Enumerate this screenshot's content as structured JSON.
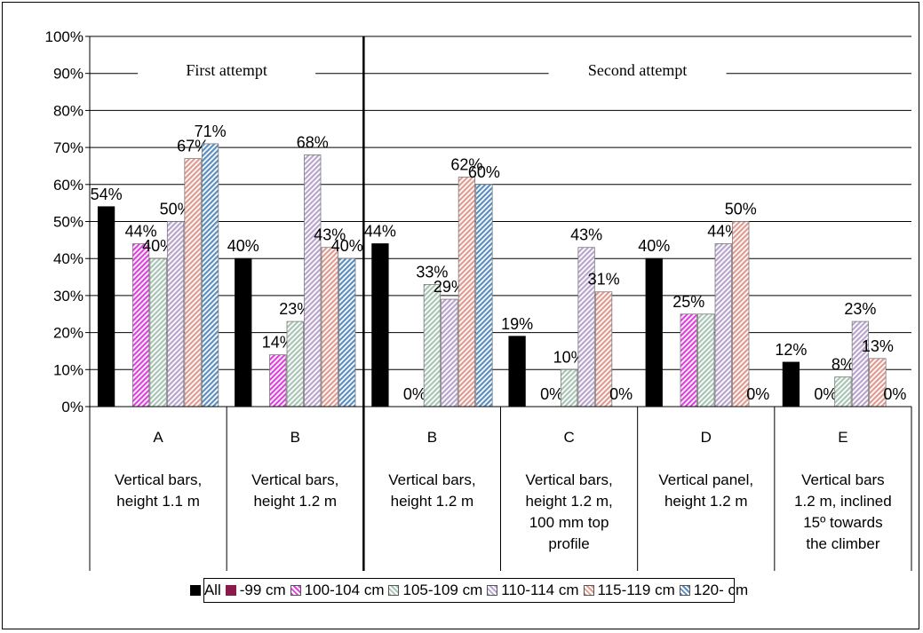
{
  "chart_data": {
    "type": "bar",
    "ylim": [
      0,
      100
    ],
    "yticks": [
      "0%",
      "10%",
      "20%",
      "30%",
      "40%",
      "50%",
      "60%",
      "70%",
      "80%",
      "90%",
      "100%"
    ],
    "grid": true,
    "legend_position": "bottom",
    "attempts": [
      {
        "label": "First attempt",
        "group_start": 0,
        "group_end": 1
      },
      {
        "label": "Second attempt",
        "group_start": 2,
        "group_end": 5
      }
    ],
    "groups": [
      {
        "code": "A",
        "description": [
          "Vertical bars,",
          "height 1.1 m"
        ]
      },
      {
        "code": "B",
        "description": [
          "Vertical bars,",
          "height 1.2 m"
        ]
      },
      {
        "code": "B",
        "description": [
          "Vertical bars,",
          "height 1.2 m"
        ]
      },
      {
        "code": "C",
        "description": [
          "Vertical bars,",
          "height 1.2 m,",
          "100 mm top",
          "profile"
        ]
      },
      {
        "code": "D",
        "description": [
          "Vertical panel,",
          "height 1.2 m"
        ]
      },
      {
        "code": "E",
        "description": [
          "Vertical bars",
          "1.2 m, inclined",
          "15º towards",
          "the climber"
        ]
      }
    ],
    "series": [
      {
        "name": "All",
        "color": "#000000",
        "pattern": "solid",
        "values": [
          54,
          40,
          44,
          19,
          40,
          12
        ],
        "labels": [
          "54%",
          "40%",
          "44%",
          "19%",
          "40%",
          "12%"
        ]
      },
      {
        "name": "-99 cm",
        "color": "#8b1a4a",
        "pattern": "solid",
        "values": [
          null,
          null,
          null,
          null,
          null,
          null
        ],
        "labels": [
          null,
          null,
          null,
          null,
          null,
          null
        ]
      },
      {
        "name": "100-104 cm",
        "color": "#e040e0",
        "pattern": "diag",
        "values": [
          44,
          14,
          0,
          0,
          25,
          0
        ],
        "labels": [
          "44%",
          "14%",
          "0%",
          "0%",
          "25%",
          "0%"
        ]
      },
      {
        "name": "105-109 cm",
        "color": "#a8c4b4",
        "pattern": "diag",
        "values": [
          40,
          23,
          33,
          10,
          25,
          8
        ],
        "labels": [
          "40%",
          "23%",
          "33%",
          "10%",
          null,
          "8%"
        ]
      },
      {
        "name": "110-114 cm",
        "color": "#b8a4cc",
        "pattern": "diag",
        "values": [
          50,
          68,
          29,
          43,
          44,
          23
        ],
        "labels": [
          "50%",
          "68%",
          "29%",
          "43%",
          "44%",
          "23%"
        ]
      },
      {
        "name": "115-119 cm",
        "color": "#e09a90",
        "pattern": "diag",
        "values": [
          67,
          43,
          62,
          31,
          50,
          13
        ],
        "labels": [
          "67%",
          "43%",
          "62%",
          "31%",
          "50%",
          "13%"
        ]
      },
      {
        "name": "120- cm",
        "color": "#5b8ec0",
        "pattern": "diag",
        "values": [
          71,
          40,
          60,
          0,
          0,
          0
        ],
        "labels": [
          "71%",
          "40%",
          "60%",
          "0%",
          "0%",
          "0%"
        ]
      }
    ]
  }
}
